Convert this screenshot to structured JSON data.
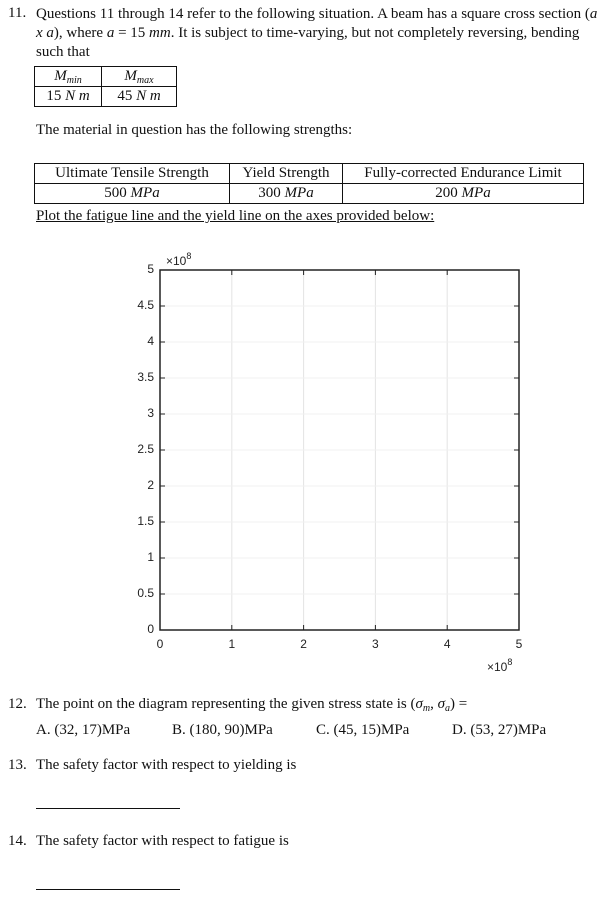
{
  "q11": {
    "number": "11.",
    "text1": "Questions 11 through 14 refer to the following situation. A beam has a square cross section (",
    "math1": "a x a",
    "text2": "), where ",
    "math2": "a",
    "text3": " = 15 ",
    "math3": "mm",
    "text4": ". It is subject to time-varying, but not completely reversing, bending such that"
  },
  "moment_table": {
    "headers": [
      {
        "symbol": "M",
        "subscript": "min"
      },
      {
        "symbol": "M",
        "subscript": "max"
      }
    ],
    "values": [
      {
        "value": "15",
        "unit": "N m"
      },
      {
        "value": "45",
        "unit": "N m"
      }
    ]
  },
  "material_text": "The material in question has the following strengths:",
  "strength_table": {
    "headers": [
      "Ultimate Tensile Strength",
      "Yield Strength",
      "Fully-corrected Endurance Limit"
    ],
    "values": [
      {
        "value": "500",
        "unit": "MPa"
      },
      {
        "value": "300",
        "unit": "MPa"
      },
      {
        "value": "200",
        "unit": "MPa"
      }
    ]
  },
  "plot_instruction": "Plot the fatigue line and the yield line on the axes provided below:",
  "chart_data": {
    "type": "line",
    "xlim": [
      0,
      5
    ],
    "ylim": [
      0,
      5
    ],
    "xticks": [
      0,
      1,
      2,
      3,
      4,
      5
    ],
    "yticks": [
      0,
      0.5,
      1,
      1.5,
      2,
      2.5,
      3,
      3.5,
      4,
      4.5,
      5
    ],
    "grid": true,
    "x_multiplier": {
      "base": "×10",
      "exponent": "8"
    },
    "y_multiplier": {
      "base": "×10",
      "exponent": "8"
    }
  },
  "q12": {
    "number": "12.",
    "text": "The point on the diagram representing the given stress state is (",
    "sigma1": "σ",
    "sub1": "m",
    "sep": ", ",
    "sigma2": "σ",
    "sub2": "a",
    "end": ") =",
    "options": [
      "A. (32, 17)MPa",
      "B. (180, 90)MPa",
      "C. (45, 15)MPa",
      "D. (53, 27)MPa"
    ]
  },
  "q13": {
    "number": "13.",
    "text": "The safety factor with respect to yielding is"
  },
  "q14": {
    "number": "14.",
    "text": "The safety factor with respect to fatigue is"
  }
}
